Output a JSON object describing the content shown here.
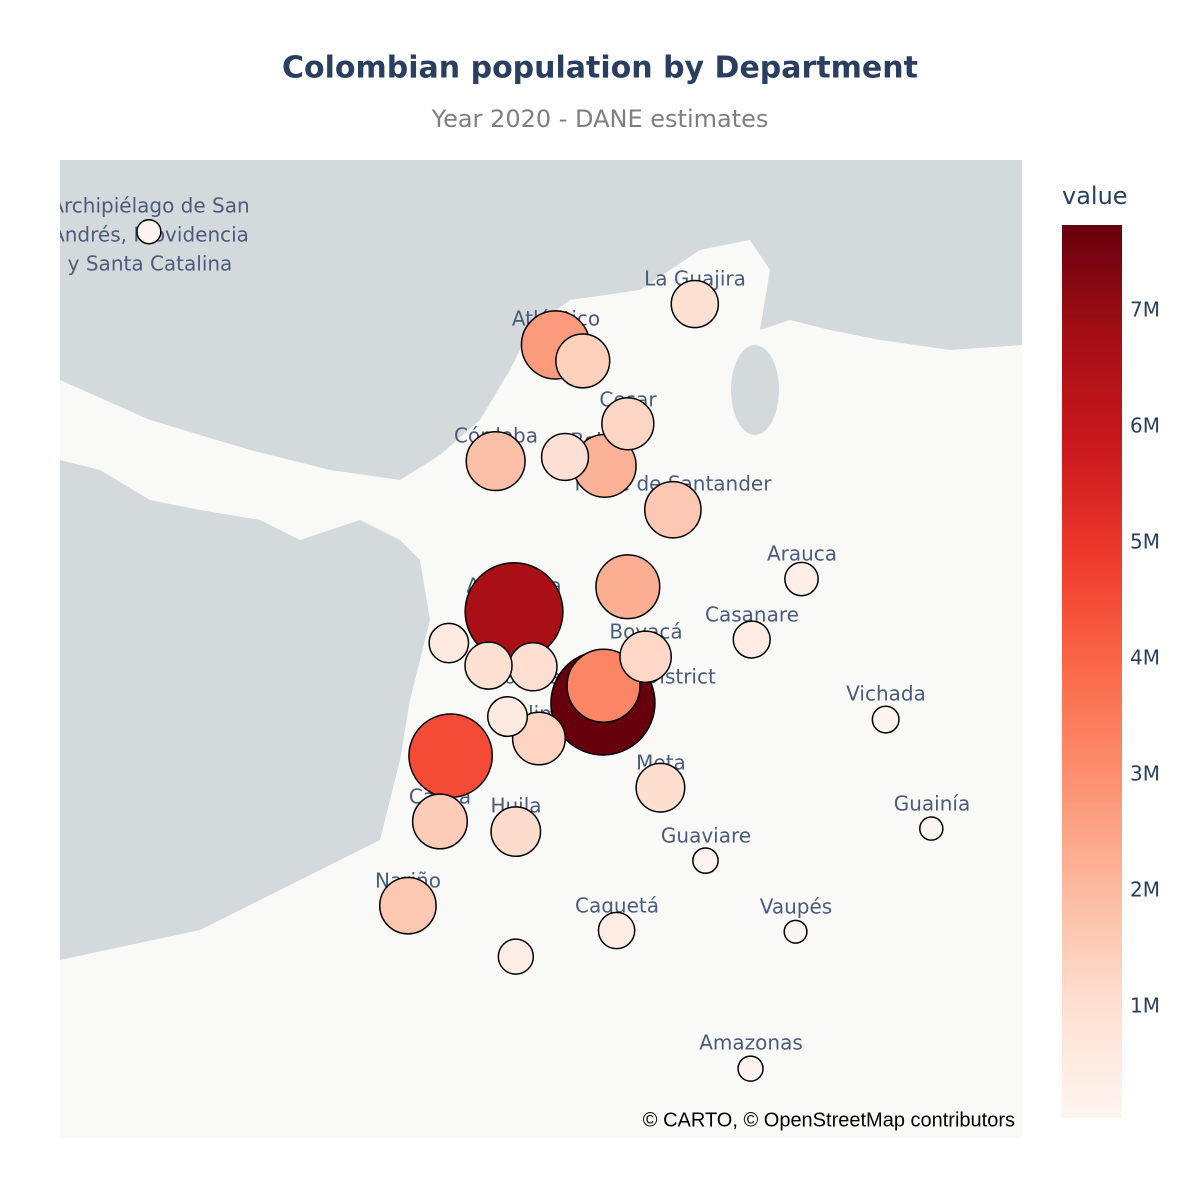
{
  "chart_data": {
    "type": "scatter_map",
    "title": "Colombian population by Department",
    "subtitle": "Year 2020 - DANE estimates",
    "xlim": [
      -83.23,
      -67.0
    ],
    "ylim": [
      -2.63,
      13.87
    ],
    "x": [
      -81.73,
      -72.52,
      -74.87,
      -74.41,
      -73.65,
      -75.88,
      -74.71,
      -74.04,
      -72.89,
      -70.72,
      -73.65,
      -75.57,
      -76.67,
      -71.56,
      -73.35,
      -75.25,
      -76.0,
      -74.06,
      -74.07,
      -75.68,
      -75.15,
      -69.3,
      -76.64,
      -73.1,
      -76.82,
      -75.54,
      -68.53,
      -72.34,
      -77.36,
      -73.84,
      -70.82,
      -75.54,
      -71.58
    ],
    "y": [
      12.66,
      11.44,
      10.75,
      10.48,
      9.42,
      8.79,
      8.86,
      8.71,
      7.97,
      6.8,
      6.67,
      6.25,
      5.72,
      5.78,
      5.49,
      5.32,
      5.34,
      5.0,
      4.71,
      4.48,
      4.11,
      4.43,
      3.82,
      3.28,
      2.71,
      2.54,
      2.59,
      2.05,
      1.29,
      0.87,
      0.85,
      0.43,
      -1.46
    ],
    "values": [
      63000,
      965000,
      2720000,
      1430000,
      1290000,
      1830000,
      950000,
      2180000,
      1620000,
      300000,
      2280000,
      6680000,
      545000,
      435000,
      1240000,
      1020000,
      960000,
      3240000,
      7740000,
      555000,
      1340000,
      113000,
      4530000,
      1060000,
      1490000,
      1120000,
      50000,
      86000,
      1630000,
      410000,
      45000,
      360000,
      80000
    ],
    "colorscale": [
      "#fff5f0",
      "#fee0d2",
      "#fcbba1",
      "#fc9272",
      "#fb6a4a",
      "#ef3b2c",
      "#cb181d",
      "#a50f15",
      "#67000d"
    ],
    "colorbar": {
      "title": "value",
      "clim": [
        45000,
        7740000
      ],
      "ticks": [
        {
          "value": 1000000,
          "label": "1M"
        },
        {
          "value": 2000000,
          "label": "2M"
        },
        {
          "value": 3000000,
          "label": "3M"
        },
        {
          "value": 4000000,
          "label": "4M"
        },
        {
          "value": 5000000,
          "label": "5M"
        },
        {
          "value": 6000000,
          "label": "6M"
        },
        {
          "value": 7000000,
          "label": "7M"
        }
      ]
    },
    "map_labels": [
      "Archipiélago de San",
      "Andrés, Providencia",
      "y Santa Catalina",
      "La Guajira",
      "Atlántico",
      "Cesar",
      "Córdoba",
      "Bolívar",
      "Norte de Santander",
      "Arauca",
      "Antioquia",
      "Casanare",
      "Boyacá",
      "Bogota Capital District",
      "Tolima",
      "Vichada",
      "Meta",
      "Cauca",
      "Huila",
      "Guainía",
      "Guaviare",
      "Nariño",
      "Caquetá",
      "Vaupés",
      "Amazonas"
    ],
    "attribution": "© CARTO, © OpenStreetMap contributors"
  }
}
